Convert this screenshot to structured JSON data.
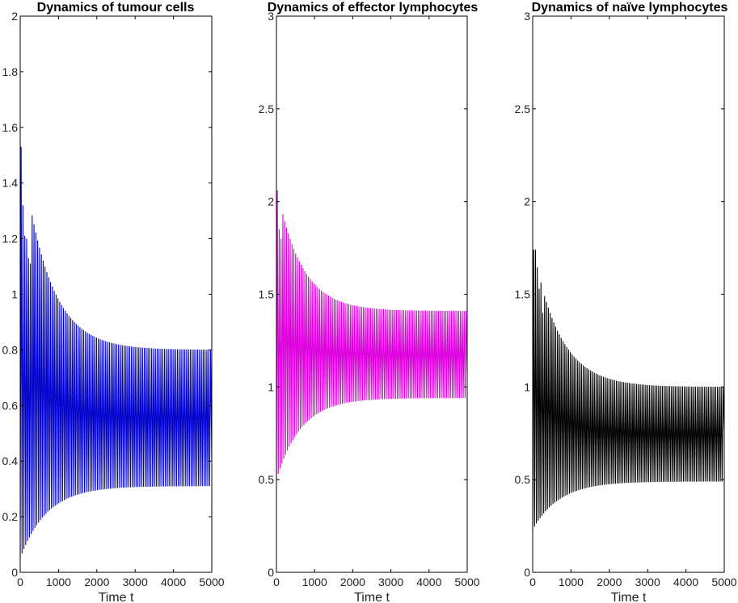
{
  "figure": "Simulated oscillatory dynamics of tumour cells, effector lymphocytes and naive lymphocytes",
  "chart_data": [
    {
      "type": "line",
      "title": "Dynamics of tumour cells",
      "xlabel": "Time t",
      "ylabel": "",
      "xlim": [
        0,
        5000
      ],
      "ylim": [
        0,
        2
      ],
      "xticks": [
        "0",
        "1000",
        "2000",
        "3000",
        "4000",
        "5000"
      ],
      "yticks": [
        "0",
        "0.2",
        "0.4",
        "0.6",
        "0.8",
        "1",
        "1.2",
        "1.4",
        "1.6",
        "1.8",
        "2"
      ],
      "color": "#0000cc",
      "series": [
        {
          "name": "tumour cells",
          "period": 48,
          "upper_start": 1.53,
          "upper_end": 0.8,
          "lower_start": 0.05,
          "lower_end": 0.31,
          "decay_time": 700,
          "final_value": 0.41,
          "peaks": [
            [
              30,
              1.53
            ],
            [
              75,
              1.32
            ],
            [
              120,
              1.21
            ],
            [
              165,
              1.2
            ],
            [
              215,
              1.13
            ],
            [
              265,
              1.11
            ]
          ]
        }
      ]
    },
    {
      "type": "line",
      "title": "Dynamics of effector lymphocytes",
      "xlabel": "Time t",
      "ylabel": "",
      "xlim": [
        0,
        5000
      ],
      "ylim": [
        0,
        3
      ],
      "xticks": [
        "0",
        "1000",
        "2000",
        "3000",
        "4000",
        "5000"
      ],
      "yticks": [
        "0",
        "0.5",
        "1",
        "1.5",
        "2",
        "2.5",
        "3"
      ],
      "color": "#dd00dd",
      "series": [
        {
          "name": "effector lymphocytes",
          "period": 48,
          "upper_start": 2.06,
          "upper_end": 1.41,
          "lower_start": 0.5,
          "lower_end": 0.94,
          "decay_time": 650,
          "final_value": 1.07,
          "peaks": [
            [
              10,
              2.06
            ],
            [
              75,
              1.85
            ],
            [
              120,
              1.8
            ]
          ]
        }
      ]
    },
    {
      "type": "line",
      "title": "Dynamics of naïve lymphocytes",
      "xlabel": "Time t",
      "ylabel": "",
      "xlim": [
        0,
        5000
      ],
      "ylim": [
        0,
        3
      ],
      "xticks": [
        "0",
        "1000",
        "2000",
        "3000",
        "4000",
        "5000"
      ],
      "yticks": [
        "0",
        "0.5",
        "1",
        "1.5",
        "2",
        "2.5",
        "3"
      ],
      "color": "#000000",
      "series": [
        {
          "name": "naive lymphocytes",
          "period": 48,
          "upper_start": 1.74,
          "upper_end": 1.0,
          "lower_start": 0.23,
          "lower_end": 0.49,
          "decay_time": 700,
          "final_value": 0.76,
          "peaks": [
            [
              70,
              1.74
            ],
            [
              160,
              1.53
            ],
            [
              250,
              1.4
            ]
          ]
        }
      ]
    }
  ]
}
